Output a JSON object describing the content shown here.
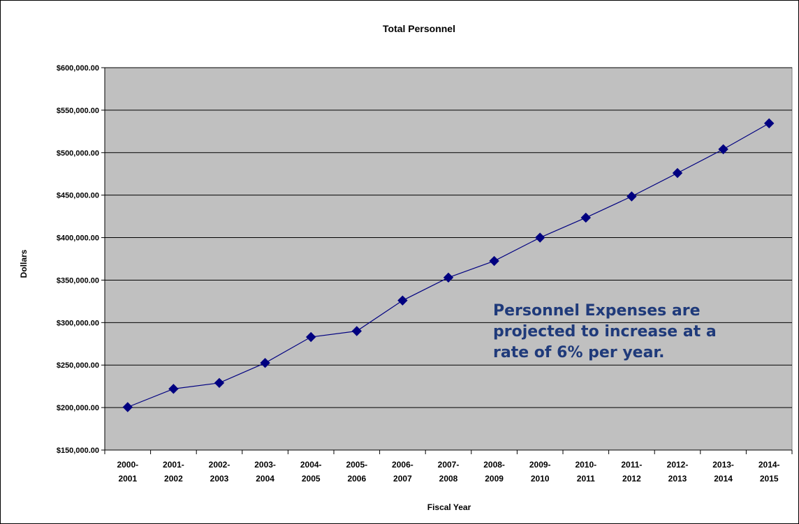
{
  "chart_data": {
    "type": "line",
    "title": "Total Personnel",
    "xlabel": "Fiscal Year",
    "ylabel": "Dollars",
    "categories": [
      "2000-2001",
      "2001-2002",
      "2002-2003",
      "2003-2004",
      "2004-2005",
      "2005-2006",
      "2006-2007",
      "2007-2008",
      "2008-2009",
      "2009-2010",
      "2010-2011",
      "2011-2012",
      "2012-2013",
      "2013-2014",
      "2014-2015"
    ],
    "category_lines": [
      [
        "2000-",
        "2001"
      ],
      [
        "2001-",
        "2002"
      ],
      [
        "2002-",
        "2003"
      ],
      [
        "2003-",
        "2004"
      ],
      [
        "2004-",
        "2005"
      ],
      [
        "2005-",
        "2006"
      ],
      [
        "2006-",
        "2007"
      ],
      [
        "2007-",
        "2008"
      ],
      [
        "2008-",
        "2009"
      ],
      [
        "2009-",
        "2010"
      ],
      [
        "2010-",
        "2011"
      ],
      [
        "2011-",
        "2012"
      ],
      [
        "2012-",
        "2013"
      ],
      [
        "2013-",
        "2014"
      ],
      [
        "2014-",
        "2015"
      ]
    ],
    "series": [
      {
        "values": [
          200500,
          222000,
          229000,
          252500,
          283000,
          290000,
          326000,
          353000,
          372500,
          400000,
          423500,
          448500,
          476000,
          504000,
          534500
        ]
      }
    ],
    "ylim": [
      150000,
      600000
    ],
    "yticks": [
      150000,
      200000,
      250000,
      300000,
      350000,
      400000,
      450000,
      500000,
      550000,
      600000
    ],
    "ytick_labels": [
      "$150,000.00",
      "$200,000.00",
      "$250,000.00",
      "$300,000.00",
      "$350,000.00",
      "$400,000.00",
      "$450,000.00",
      "$500,000.00",
      "$550,000.00",
      "$600,000.00"
    ],
    "grid": "horizontal",
    "legend": "none",
    "annotation": [
      "Personnel Expenses are",
      "projected to increase at a",
      "rate of 6% per year."
    ],
    "colors": {
      "plot_bg": "#c0c0c0",
      "line": "#000080",
      "annotation": "#1f3a7a"
    }
  }
}
